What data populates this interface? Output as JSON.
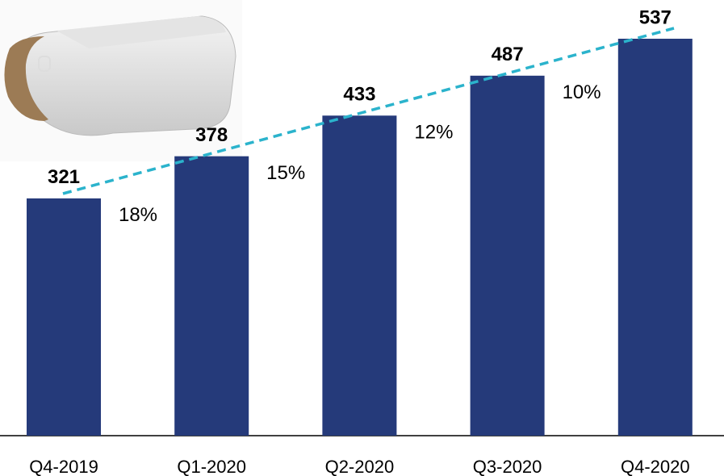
{
  "chart_data": {
    "type": "bar",
    "categories": [
      "Q4-2019",
      "Q1-2020",
      "Q2-2020",
      "Q3-2020",
      "Q4-2020"
    ],
    "values": [
      321,
      378,
      433,
      487,
      537
    ],
    "color": "#253a7a",
    "growth": {
      "values": [
        18,
        15,
        12,
        10
      ],
      "value_labels": [
        "18%",
        "15%",
        "12%",
        "10%"
      ]
    }
  }
}
